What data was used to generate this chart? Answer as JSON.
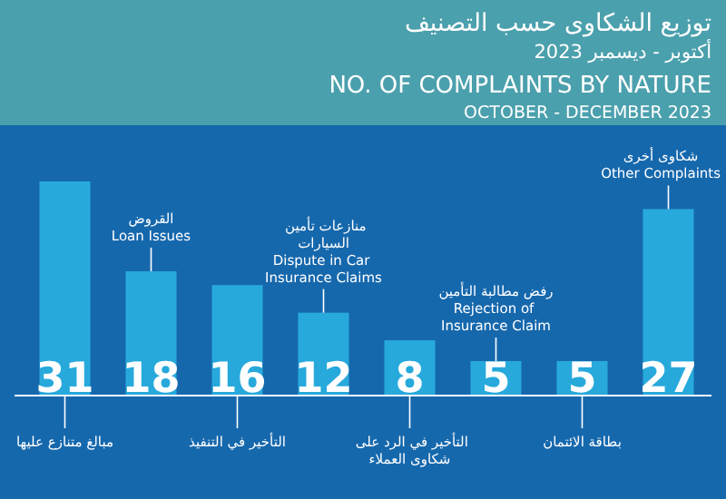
{
  "chart_data": {
    "type": "bar",
    "title": "NO. OF COMPLAINTS BY NATURE",
    "subtitle": "OCTOBER - DECEMBER 2023",
    "categories": [
      "مبالغ متنازع عليها",
      "القروض",
      "التأخير في التنفيذ",
      "منازعات تأمين السيارات",
      "التأخير في الرد على شكاوى العملاء",
      "رفض مطالبة التأمين",
      "بطاقة الائتمان",
      "شكاوى أخرى"
    ],
    "values": [
      31,
      18,
      16,
      12,
      8,
      5,
      5,
      27
    ],
    "color": "#27a9dc",
    "data_labels": true,
    "annotations": [
      "توزيع الشكاوى حسب التصنيف",
      "أكتوبر - ديسمبر 2023",
      {
        "text": "Loan Issues",
        "x": "القروض",
        "y": 18
      },
      {
        "text": "Dispute in Car Insurance Claims",
        "x": "منازعات تأمين السيارات",
        "y": 12
      },
      {
        "text": "Rejection of Insurance Claim",
        "x": "رفض مطالبة التأمين",
        "y": 5
      },
      {
        "text": "Other Complaints",
        "x": "شكاوى أخرى",
        "y": 27
      }
    ]
  }
}
